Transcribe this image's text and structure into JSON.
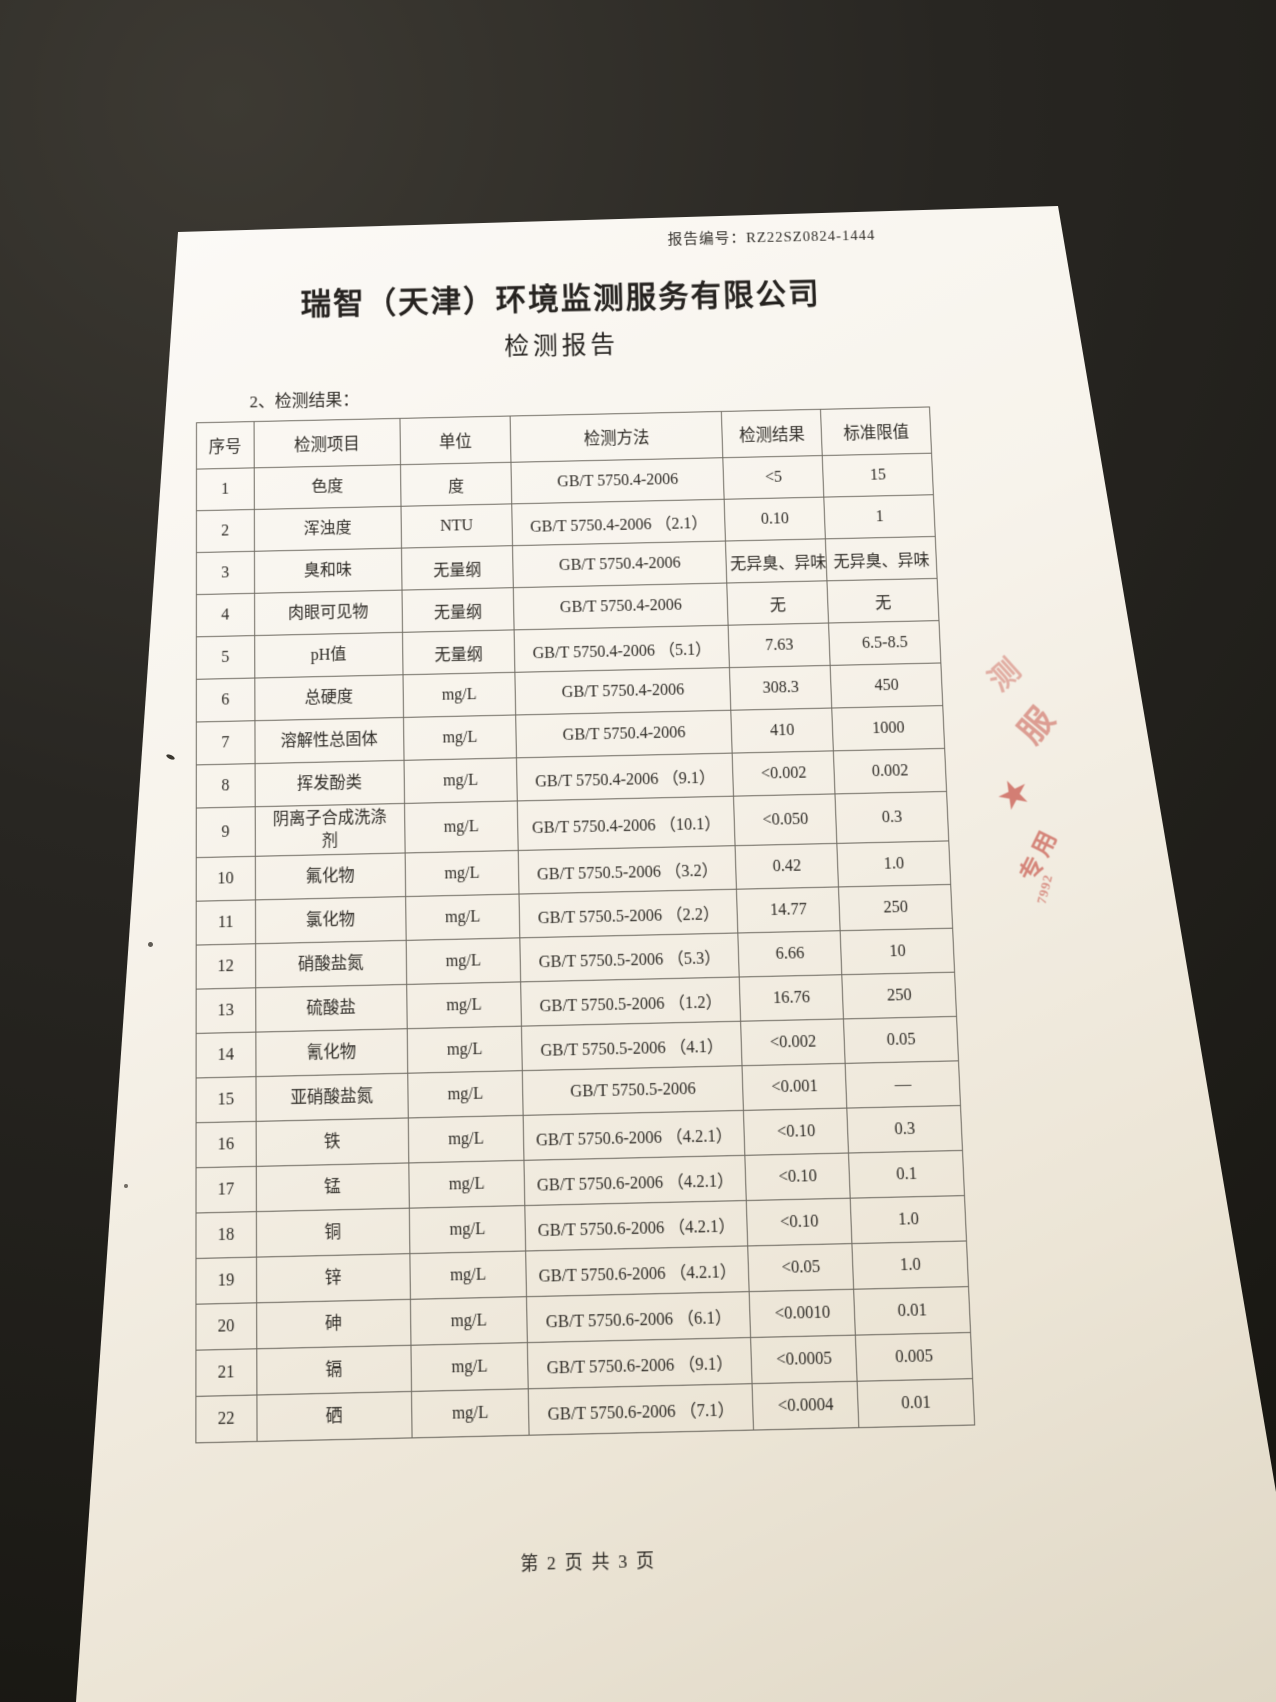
{
  "colors": {
    "background": "#23211c",
    "paper": "#f6f2ea",
    "table_border": "#6f6b62",
    "ink": "#2f2c27",
    "stamp_red": "#c4463b"
  },
  "report": {
    "report_no_label": "报告编号：",
    "report_no": "RZ22SZ0824-1444",
    "company": "瑞智（天津）环境监测服务有限公司",
    "doc_title": "检测报告",
    "section_label": "2、检测结果：",
    "footer": "第 2 页 共 3 页"
  },
  "table": {
    "headers": [
      "序号",
      "检测项目",
      "单位",
      "检测方法",
      "检测结果",
      "标准限值"
    ],
    "rows": [
      [
        "1",
        "色度",
        "度",
        "GB/T 5750.4-2006",
        "<5",
        "15"
      ],
      [
        "2",
        "浑浊度",
        "NTU",
        "GB/T 5750.4-2006 （2.1）",
        "0.10",
        "1"
      ],
      [
        "3",
        "臭和味",
        "无量纲",
        "GB/T 5750.4-2006",
        "无异臭、异味",
        "无异臭、异味"
      ],
      [
        "4",
        "肉眼可见物",
        "无量纲",
        "GB/T 5750.4-2006",
        "无",
        "无"
      ],
      [
        "5",
        "pH值",
        "无量纲",
        "GB/T 5750.4-2006 （5.1）",
        "7.63",
        "6.5-8.5"
      ],
      [
        "6",
        "总硬度",
        "mg/L",
        "GB/T 5750.4-2006",
        "308.3",
        "450"
      ],
      [
        "7",
        "溶解性总固体",
        "mg/L",
        "GB/T 5750.4-2006",
        "410",
        "1000"
      ],
      [
        "8",
        "挥发酚类",
        "mg/L",
        "GB/T 5750.4-2006 （9.1）",
        "<0.002",
        "0.002"
      ],
      [
        "9",
        "阴离子合成洗涤剂",
        "mg/L",
        "GB/T 5750.4-2006 （10.1）",
        "<0.050",
        "0.3"
      ],
      [
        "10",
        "氟化物",
        "mg/L",
        "GB/T 5750.5-2006 （3.2）",
        "0.42",
        "1.0"
      ],
      [
        "11",
        "氯化物",
        "mg/L",
        "GB/T 5750.5-2006 （2.2）",
        "14.77",
        "250"
      ],
      [
        "12",
        "硝酸盐氮",
        "mg/L",
        "GB/T 5750.5-2006 （5.3）",
        "6.66",
        "10"
      ],
      [
        "13",
        "硫酸盐",
        "mg/L",
        "GB/T 5750.5-2006 （1.2）",
        "16.76",
        "250"
      ],
      [
        "14",
        "氰化物",
        "mg/L",
        "GB/T 5750.5-2006 （4.1）",
        "<0.002",
        "0.05"
      ],
      [
        "15",
        "亚硝酸盐氮",
        "mg/L",
        "GB/T 5750.5-2006",
        "<0.001",
        "—"
      ],
      [
        "16",
        "铁",
        "mg/L",
        "GB/T 5750.6-2006 （4.2.1）",
        "<0.10",
        "0.3"
      ],
      [
        "17",
        "锰",
        "mg/L",
        "GB/T 5750.6-2006 （4.2.1）",
        "<0.10",
        "0.1"
      ],
      [
        "18",
        "铜",
        "mg/L",
        "GB/T 5750.6-2006 （4.2.1）",
        "<0.10",
        "1.0"
      ],
      [
        "19",
        "锌",
        "mg/L",
        "GB/T 5750.6-2006 （4.2.1）",
        "<0.05",
        "1.0"
      ],
      [
        "20",
        "砷",
        "mg/L",
        "GB/T 5750.6-2006 （6.1）",
        "<0.0010",
        "0.01"
      ],
      [
        "21",
        "镉",
        "mg/L",
        "GB/T 5750.6-2006 （9.1）",
        "<0.0005",
        "0.005"
      ],
      [
        "22",
        "硒",
        "mg/L",
        "GB/T 5750.6-2006 （7.1）",
        "<0.0004",
        "0.01"
      ]
    ]
  },
  "stamp": {
    "fragments": [
      "测",
      "服",
      "★",
      "专用",
      "7992"
    ]
  }
}
